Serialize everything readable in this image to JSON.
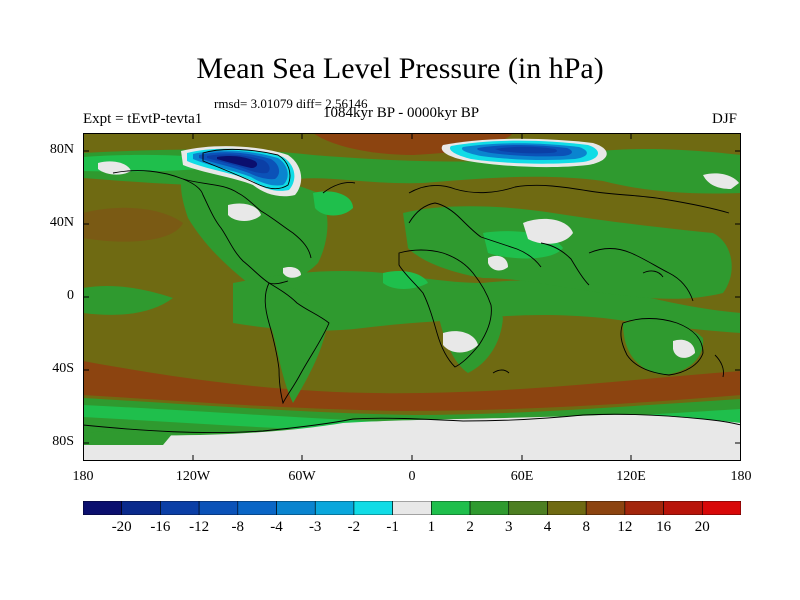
{
  "figure": {
    "title": "Mean Sea Level Pressure (in hPa)",
    "stats": "rmsd= 3.01079 diff= 2.56146",
    "experiment": "Expt = tEvtP-tevta1",
    "period": "1084kyr BP - 0000kyr BP",
    "season": "DJF"
  },
  "axes": {
    "y_ticks": [
      "80N",
      "40N",
      "0",
      "40S",
      "80S"
    ],
    "x_ticks": [
      "180",
      "120W",
      "60W",
      "0",
      "60E",
      "120E",
      "180"
    ]
  },
  "colorbar": {
    "boundaries": [
      "-20",
      "-16",
      "-12",
      "-8",
      "-4",
      "-3",
      "-2",
      "-1",
      "1",
      "2",
      "3",
      "4",
      "8",
      "12",
      "16",
      "20"
    ],
    "colors": [
      "#0b0f6e",
      "#0a2a8c",
      "#0b3fa6",
      "#0b52b8",
      "#0a66c6",
      "#0a84cf",
      "#0aa7dc",
      "#11dce6",
      "#e8e8e8",
      "#1fbf4c",
      "#2f9a2f",
      "#4d7f22",
      "#6f6a12",
      "#8c4410",
      "#a3260c",
      "#b8140a",
      "#d80808"
    ]
  },
  "colors": {
    "background_field": "#6f6a12",
    "green_field": "#2f9a2f",
    "light_green_field": "#1fbf4c",
    "near_zero": "#e8e8e8",
    "high_anomaly": "#8c4410",
    "coast": "#000000"
  }
}
